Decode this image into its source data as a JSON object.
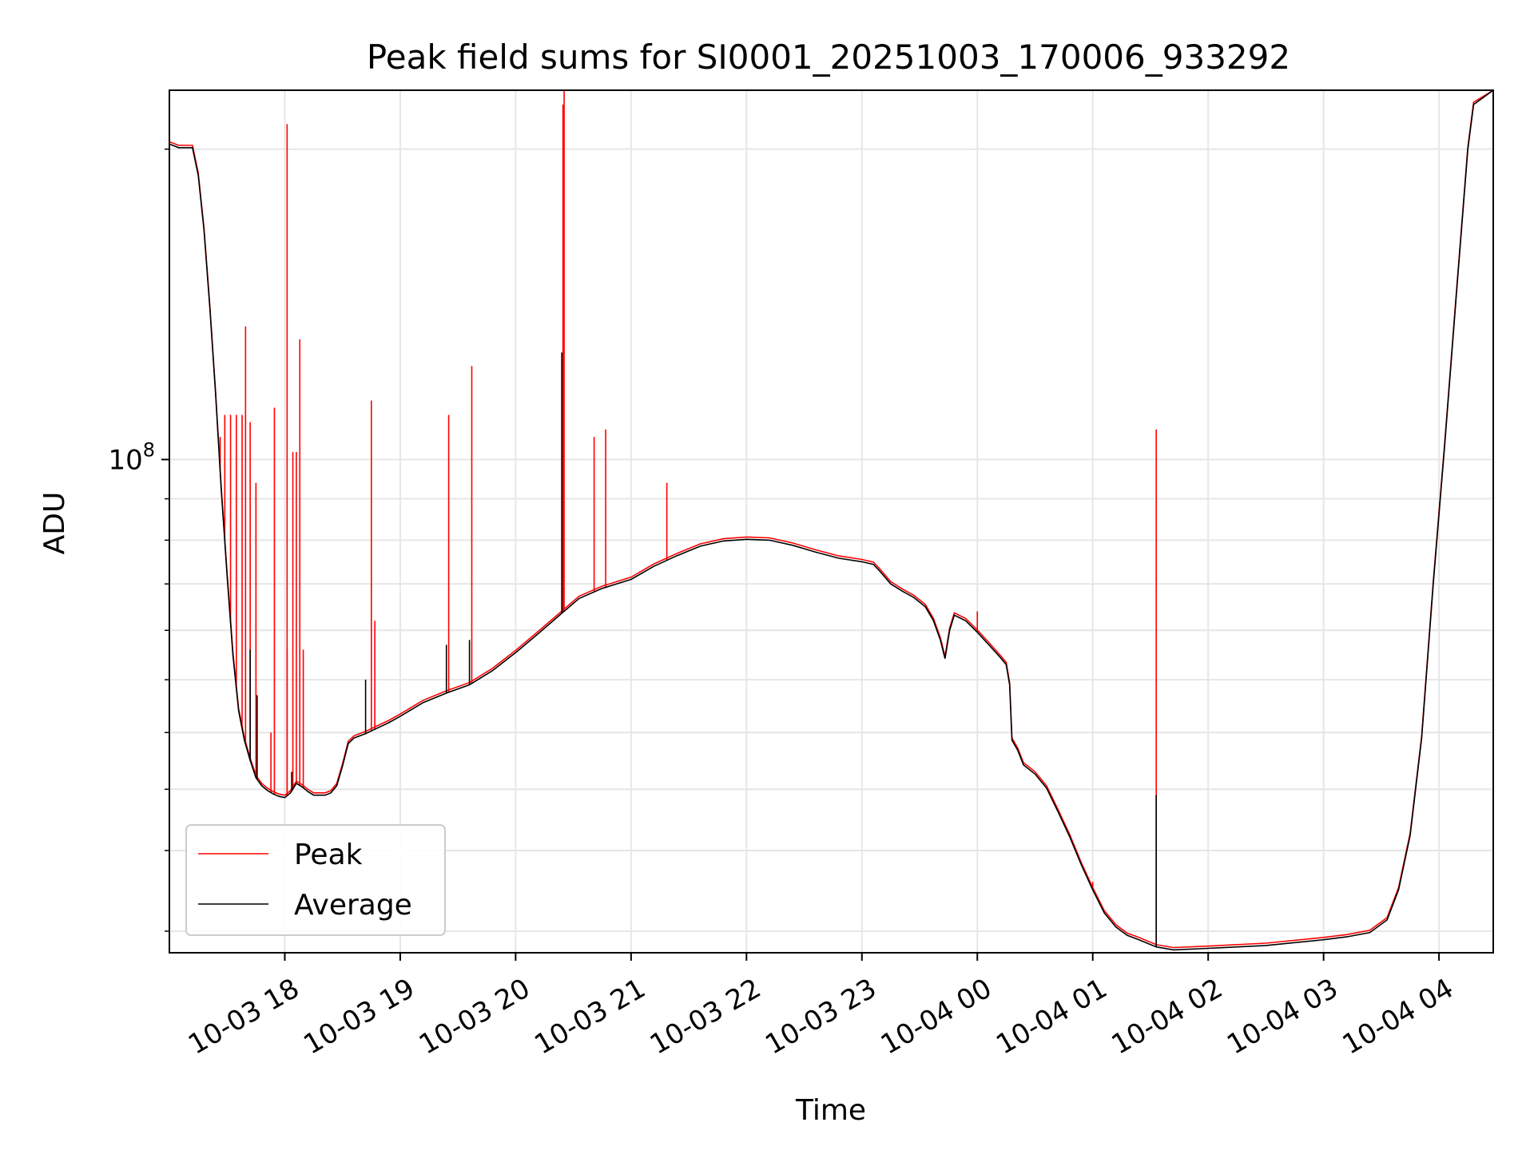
{
  "chart_data": {
    "type": "line",
    "title": "Peak field sums for SI0001_20251003_170006_933292",
    "xlabel": "Time",
    "ylabel": "ADU",
    "y_scale": "log",
    "x_unit": "hours since 2025-10-03 17:00",
    "xlim": [
      0.0,
      11.47
    ],
    "ylim": [
      52500000,
      162000000
    ],
    "x_ticks": [
      {
        "value": 1,
        "label": "10-03 18"
      },
      {
        "value": 2,
        "label": "10-03 19"
      },
      {
        "value": 3,
        "label": "10-03 20"
      },
      {
        "value": 4,
        "label": "10-03 21"
      },
      {
        "value": 5,
        "label": "10-03 22"
      },
      {
        "value": 6,
        "label": "10-03 23"
      },
      {
        "value": 7,
        "label": "10-04 00"
      },
      {
        "value": 8,
        "label": "10-04 01"
      },
      {
        "value": 9,
        "label": "10-04 02"
      },
      {
        "value": 10,
        "label": "10-04 03"
      },
      {
        "value": 11,
        "label": "10-04 04"
      }
    ],
    "y_major_ticks": [
      {
        "value": 100000000,
        "base": "10",
        "exp": "8"
      }
    ],
    "y_minor_ticks": [
      54000000,
      60000000,
      65000000,
      70000000,
      75000000,
      80000000,
      85000000,
      90000000,
      95000000,
      150000000
    ],
    "grid": true,
    "legend": "lower-left",
    "series": [
      {
        "name": "Average",
        "color": "#000000",
        "points": [
          [
            0.0,
            151000000
          ],
          [
            0.08,
            150300000
          ],
          [
            0.2,
            150300000
          ],
          [
            0.25,
            145000000
          ],
          [
            0.3,
            135000000
          ],
          [
            0.35,
            122000000
          ],
          [
            0.4,
            109000000
          ],
          [
            0.45,
            96000000
          ],
          [
            0.5,
            86000000
          ],
          [
            0.55,
            77500000
          ],
          [
            0.6,
            72000000
          ],
          [
            0.65,
            69300000
          ],
          [
            0.7,
            67500000
          ],
          [
            0.75,
            66000000
          ],
          [
            0.8,
            65300000
          ],
          [
            0.85,
            64900000
          ],
          [
            0.9,
            64600000
          ],
          [
            0.95,
            64400000
          ],
          [
            1.0,
            64300000
          ],
          [
            1.05,
            64700000
          ],
          [
            1.1,
            65500000
          ],
          [
            1.15,
            65200000
          ],
          [
            1.2,
            64800000
          ],
          [
            1.25,
            64500000
          ],
          [
            1.35,
            64500000
          ],
          [
            1.4,
            64700000
          ],
          [
            1.45,
            65300000
          ],
          [
            1.5,
            67000000
          ],
          [
            1.55,
            69000000
          ],
          [
            1.6,
            69500000
          ],
          [
            1.7,
            69900000
          ],
          [
            1.8,
            70400000
          ],
          [
            1.9,
            70900000
          ],
          [
            2.0,
            71500000
          ],
          [
            2.2,
            72800000
          ],
          [
            2.4,
            73700000
          ],
          [
            2.6,
            74500000
          ],
          [
            2.8,
            75900000
          ],
          [
            3.0,
            77700000
          ],
          [
            3.2,
            79700000
          ],
          [
            3.4,
            81800000
          ],
          [
            3.55,
            83400000
          ],
          [
            3.75,
            84500000
          ],
          [
            4.0,
            85500000
          ],
          [
            4.2,
            87000000
          ],
          [
            4.4,
            88200000
          ],
          [
            4.6,
            89300000
          ],
          [
            4.8,
            89900000
          ],
          [
            5.0,
            90100000
          ],
          [
            5.2,
            90000000
          ],
          [
            5.4,
            89400000
          ],
          [
            5.6,
            88600000
          ],
          [
            5.8,
            87900000
          ],
          [
            6.0,
            87500000
          ],
          [
            6.1,
            87200000
          ],
          [
            6.15,
            86500000
          ],
          [
            6.25,
            85000000
          ],
          [
            6.35,
            84200000
          ],
          [
            6.45,
            83500000
          ],
          [
            6.55,
            82500000
          ],
          [
            6.62,
            81000000
          ],
          [
            6.68,
            79000000
          ],
          [
            6.72,
            77100000
          ],
          [
            6.76,
            80000000
          ],
          [
            6.8,
            81600000
          ],
          [
            6.9,
            81000000
          ],
          [
            7.0,
            79800000
          ],
          [
            7.1,
            78500000
          ],
          [
            7.2,
            77200000
          ],
          [
            7.25,
            76500000
          ],
          [
            7.28,
            74500000
          ],
          [
            7.3,
            69300000
          ],
          [
            7.35,
            68400000
          ],
          [
            7.4,
            67100000
          ],
          [
            7.5,
            66300000
          ],
          [
            7.6,
            65100000
          ],
          [
            7.7,
            63100000
          ],
          [
            7.8,
            61100000
          ],
          [
            7.9,
            58900000
          ],
          [
            8.0,
            57000000
          ],
          [
            8.1,
            55300000
          ],
          [
            8.2,
            54300000
          ],
          [
            8.3,
            53700000
          ],
          [
            8.4,
            53400000
          ],
          [
            8.55,
            52900000
          ],
          [
            8.7,
            52700000
          ],
          [
            9.0,
            52800000
          ],
          [
            9.5,
            53000000
          ],
          [
            10.0,
            53400000
          ],
          [
            10.2,
            53600000
          ],
          [
            10.4,
            53900000
          ],
          [
            10.55,
            54800000
          ],
          [
            10.65,
            57000000
          ],
          [
            10.75,
            61200000
          ],
          [
            10.85,
            69500000
          ],
          [
            10.95,
            85000000
          ],
          [
            11.05,
            102000000
          ],
          [
            11.15,
            124000000
          ],
          [
            11.25,
            150000000
          ],
          [
            11.3,
            159000000
          ],
          [
            11.47,
            162000000
          ]
        ],
        "spikes": [
          [
            0.7,
            78000000
          ],
          [
            0.76,
            73500000
          ],
          [
            1.06,
            66500000
          ],
          [
            1.7,
            75000000
          ],
          [
            2.4,
            78500000
          ],
          [
            2.6,
            79000000
          ],
          [
            3.4,
            115000000
          ],
          [
            8.55,
            64500000
          ]
        ]
      },
      {
        "name": "Peak",
        "color": "#ff0000",
        "spikes": [
          [
            0.44,
            103000000
          ],
          [
            0.48,
            106000000
          ],
          [
            0.53,
            106000000
          ],
          [
            0.58,
            106000000
          ],
          [
            0.63,
            106000000
          ],
          [
            0.66,
            119000000
          ],
          [
            0.7,
            105000000
          ],
          [
            0.75,
            97000000
          ],
          [
            0.88,
            70000000
          ],
          [
            0.91,
            107000000
          ],
          [
            1.02,
            78000000
          ],
          [
            1.02,
            155000000
          ],
          [
            1.07,
            101000000
          ],
          [
            1.1,
            101000000
          ],
          [
            1.13,
            117000000
          ],
          [
            1.16,
            78000000
          ],
          [
            1.75,
            108000000
          ],
          [
            1.78,
            81000000
          ],
          [
            2.42,
            106000000
          ],
          [
            2.62,
            113000000
          ],
          [
            3.41,
            159000000
          ],
          [
            3.42,
            162000000
          ],
          [
            3.68,
            103000000
          ],
          [
            3.78,
            104000000
          ],
          [
            4.31,
            97000000
          ],
          [
            8.55,
            104000000
          ],
          [
            7.0,
            82000000
          ],
          [
            8.0,
            57600000
          ]
        ]
      }
    ]
  }
}
